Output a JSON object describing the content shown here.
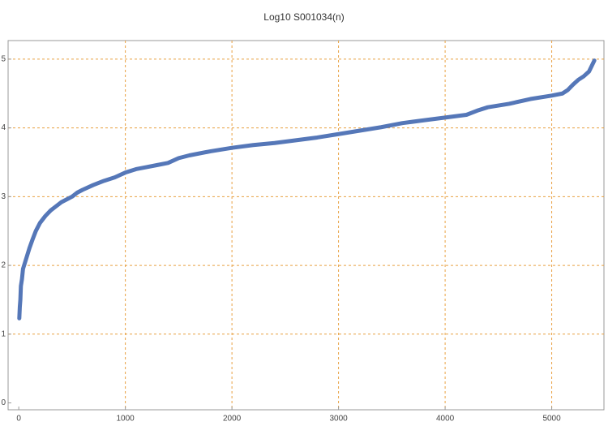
{
  "chart_data": {
    "type": "line",
    "title": "Log10 S001034(n)",
    "x": [
      5,
      10,
      15,
      20,
      30,
      40,
      60,
      80,
      100,
      130,
      160,
      200,
      250,
      300,
      350,
      400,
      450,
      500,
      550,
      600,
      700,
      800,
      900,
      1000,
      1100,
      1200,
      1300,
      1400,
      1500,
      1600,
      1800,
      2000,
      2200,
      2400,
      2600,
      2800,
      3000,
      3200,
      3400,
      3600,
      3800,
      4000,
      4200,
      4300,
      4400,
      4600,
      4800,
      5000,
      5100,
      5150,
      5200,
      5250,
      5300,
      5350,
      5400
    ],
    "series": [
      {
        "color": "#5577b8",
        "values": [
          1.23,
          1.4,
          1.5,
          1.7,
          1.8,
          1.95,
          2.05,
          2.15,
          2.25,
          2.38,
          2.5,
          2.62,
          2.72,
          2.8,
          2.86,
          2.92,
          2.96,
          3.0,
          3.06,
          3.1,
          3.17,
          3.23,
          3.28,
          3.35,
          3.4,
          3.43,
          3.46,
          3.49,
          3.56,
          3.6,
          3.66,
          3.71,
          3.75,
          3.78,
          3.82,
          3.86,
          3.91,
          3.96,
          4.01,
          4.07,
          4.11,
          4.15,
          4.19,
          4.25,
          4.3,
          4.35,
          4.42,
          4.47,
          4.5,
          4.55,
          4.63,
          4.7,
          4.75,
          4.82,
          4.98
        ]
      }
    ],
    "xlim": [
      -100,
      5490
    ],
    "ylim": [
      -0.1,
      5.27
    ],
    "xticks": [
      0,
      1000,
      2000,
      3000,
      4000,
      5000
    ],
    "yticks": [
      0,
      1,
      2,
      3,
      4,
      5
    ],
    "grid": true,
    "grid_color": "#e8a040"
  }
}
